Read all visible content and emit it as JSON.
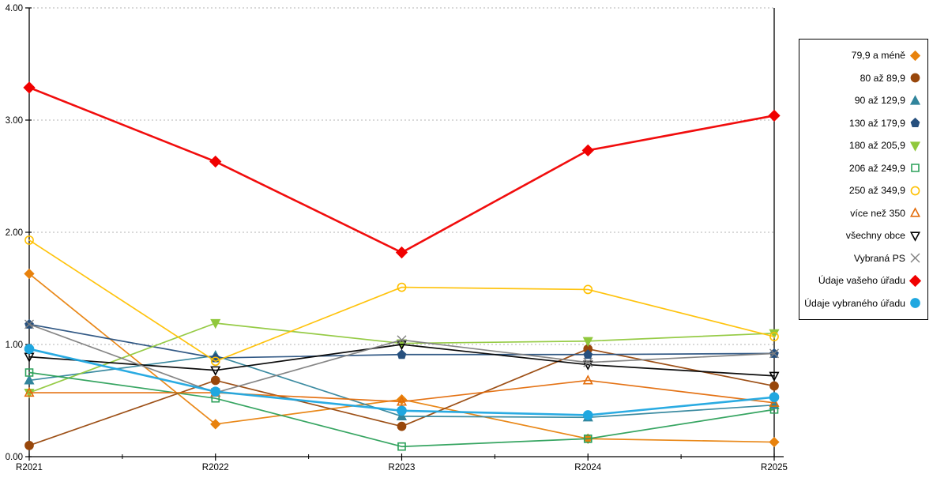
{
  "chart_data": {
    "type": "line",
    "title": "",
    "xlabel": "",
    "ylabel": "",
    "x_categories": [
      "R2021",
      "R2022",
      "R2023",
      "R2024",
      "R2025"
    ],
    "y_tick_labels": [
      "0.00",
      "1.00",
      "2.00",
      "3.00",
      "4.00"
    ],
    "ylim": [
      0,
      4
    ],
    "grid": "horizontal-dashed-at-1-2-3-4",
    "legend_position": "right",
    "series": [
      {
        "name": "79,9 a méně",
        "color": "#E8820D",
        "marker": "diamond",
        "filled": true,
        "line_width": 1.7,
        "marker_size": 5.5,
        "values": [
          1.63,
          0.29,
          0.51,
          0.16,
          0.13
        ]
      },
      {
        "name": "80 až 89,9",
        "color": "#98470B",
        "marker": "circle",
        "filled": true,
        "line_width": 1.7,
        "marker_size": 5.5,
        "values": [
          0.1,
          0.68,
          0.27,
          0.96,
          0.63
        ]
      },
      {
        "name": "90 až 129,9",
        "color": "#31859C",
        "marker": "triangle-up",
        "filled": true,
        "line_width": 1.7,
        "marker_size": 5.5,
        "values": [
          0.68,
          0.9,
          0.36,
          0.35,
          0.46
        ]
      },
      {
        "name": "130 až 179,9",
        "color": "#27507E",
        "marker": "pentagon",
        "filled": true,
        "line_width": 1.7,
        "marker_size": 5.5,
        "values": [
          1.18,
          0.88,
          0.91,
          0.91,
          0.92
        ]
      },
      {
        "name": "180 až 205,9",
        "color": "#90C83C",
        "marker": "triangle-down",
        "filled": true,
        "line_width": 1.7,
        "marker_size": 5.5,
        "values": [
          0.57,
          1.19,
          1.01,
          1.03,
          1.1
        ]
      },
      {
        "name": "206 až 249,9",
        "color": "#2CA05A",
        "marker": "square",
        "filled": false,
        "line_width": 1.7,
        "marker_size": 5.5,
        "values": [
          0.75,
          0.52,
          0.09,
          0.16,
          0.42
        ]
      },
      {
        "name": "250 až 349,9",
        "color": "#FFC000",
        "marker": "circle",
        "filled": false,
        "line_width": 1.7,
        "marker_size": 5.5,
        "values": [
          1.93,
          0.85,
          1.51,
          1.49,
          1.07
        ]
      },
      {
        "name": "více než 350",
        "color": "#E36C0A",
        "marker": "triangle-up",
        "filled": false,
        "line_width": 1.7,
        "marker_size": 5.5,
        "values": [
          0.57,
          0.57,
          0.49,
          0.68,
          0.48
        ]
      },
      {
        "name": "všechny obce",
        "color": "#000000",
        "marker": "triangle-down",
        "filled": false,
        "line_width": 1.7,
        "marker_size": 5.5,
        "values": [
          0.89,
          0.77,
          1.0,
          0.82,
          0.72
        ]
      },
      {
        "name": "Vybraná PS",
        "color": "#7F7F7F",
        "marker": "x",
        "filled": false,
        "line_width": 1.7,
        "marker_size": 5.5,
        "values": [
          1.18,
          0.57,
          1.04,
          0.84,
          0.92
        ]
      },
      {
        "name": "Údaje vašeho úřadu",
        "color": "#F00000",
        "marker": "diamond",
        "filled": true,
        "line_width": 2.6,
        "marker_size": 6.5,
        "values": [
          3.29,
          2.63,
          1.82,
          2.73,
          3.04
        ]
      },
      {
        "name": "Údaje vybraného úřadu",
        "color": "#1FA7E0",
        "marker": "circle",
        "filled": true,
        "line_width": 2.6,
        "marker_size": 6.0,
        "values": [
          0.96,
          0.58,
          0.41,
          0.37,
          0.53
        ]
      }
    ]
  }
}
